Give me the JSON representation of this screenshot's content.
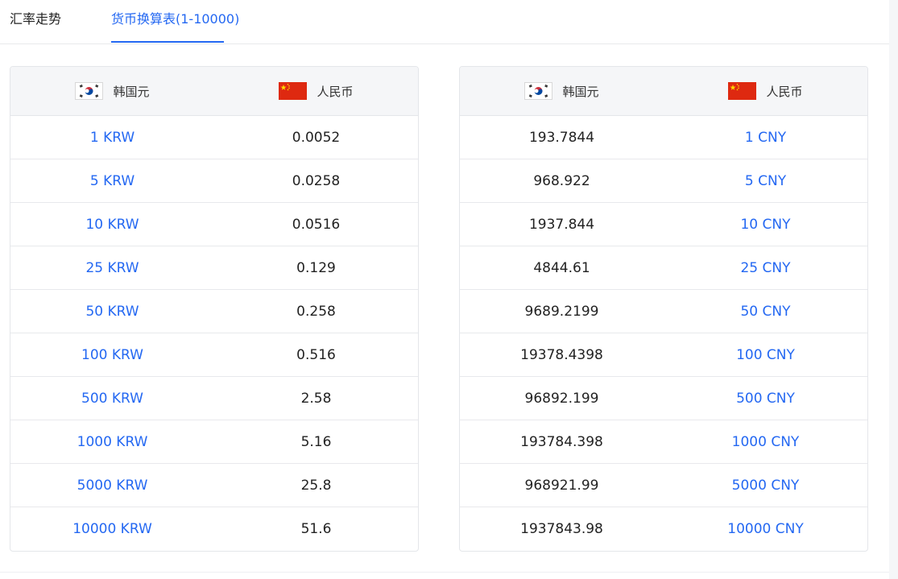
{
  "tabs": {
    "trend_label": "汇率走势",
    "table_label": "货币换算表(1-10000)"
  },
  "left_table": {
    "header_from": "韩国元",
    "header_to": "人民币",
    "rows": [
      {
        "from": "1 KRW",
        "to": "0.0052"
      },
      {
        "from": "5 KRW",
        "to": "0.0258"
      },
      {
        "from": "10 KRW",
        "to": "0.0516"
      },
      {
        "from": "25 KRW",
        "to": "0.129"
      },
      {
        "from": "50 KRW",
        "to": "0.258"
      },
      {
        "from": "100 KRW",
        "to": "0.516"
      },
      {
        "from": "500 KRW",
        "to": "2.58"
      },
      {
        "from": "1000 KRW",
        "to": "5.16"
      },
      {
        "from": "5000 KRW",
        "to": "25.8"
      },
      {
        "from": "10000 KRW",
        "to": "51.6"
      }
    ]
  },
  "right_table": {
    "header_from": "韩国元",
    "header_to": "人民币",
    "rows": [
      {
        "from": "193.7844",
        "to": "1 CNY"
      },
      {
        "from": "968.922",
        "to": "5 CNY"
      },
      {
        "from": "1937.844",
        "to": "10 CNY"
      },
      {
        "from": "4844.61",
        "to": "25 CNY"
      },
      {
        "from": "9689.2199",
        "to": "50 CNY"
      },
      {
        "from": "19378.4398",
        "to": "100 CNY"
      },
      {
        "from": "96892.199",
        "to": "500 CNY"
      },
      {
        "from": "193784.398",
        "to": "1000 CNY"
      },
      {
        "from": "968921.99",
        "to": "5000 CNY"
      },
      {
        "from": "1937843.98",
        "to": "10000 CNY"
      }
    ]
  },
  "icons": {
    "kr_flag": "korea-flag-icon",
    "cn_flag": "china-flag-icon"
  },
  "colors": {
    "accent": "#2468f2",
    "header_bg": "#f5f6f8",
    "border": "#e4e6ea",
    "cn_red": "#de2910",
    "cn_yellow": "#ffde00",
    "kr_red": "#cd2e3a",
    "kr_blue": "#0047a0"
  }
}
